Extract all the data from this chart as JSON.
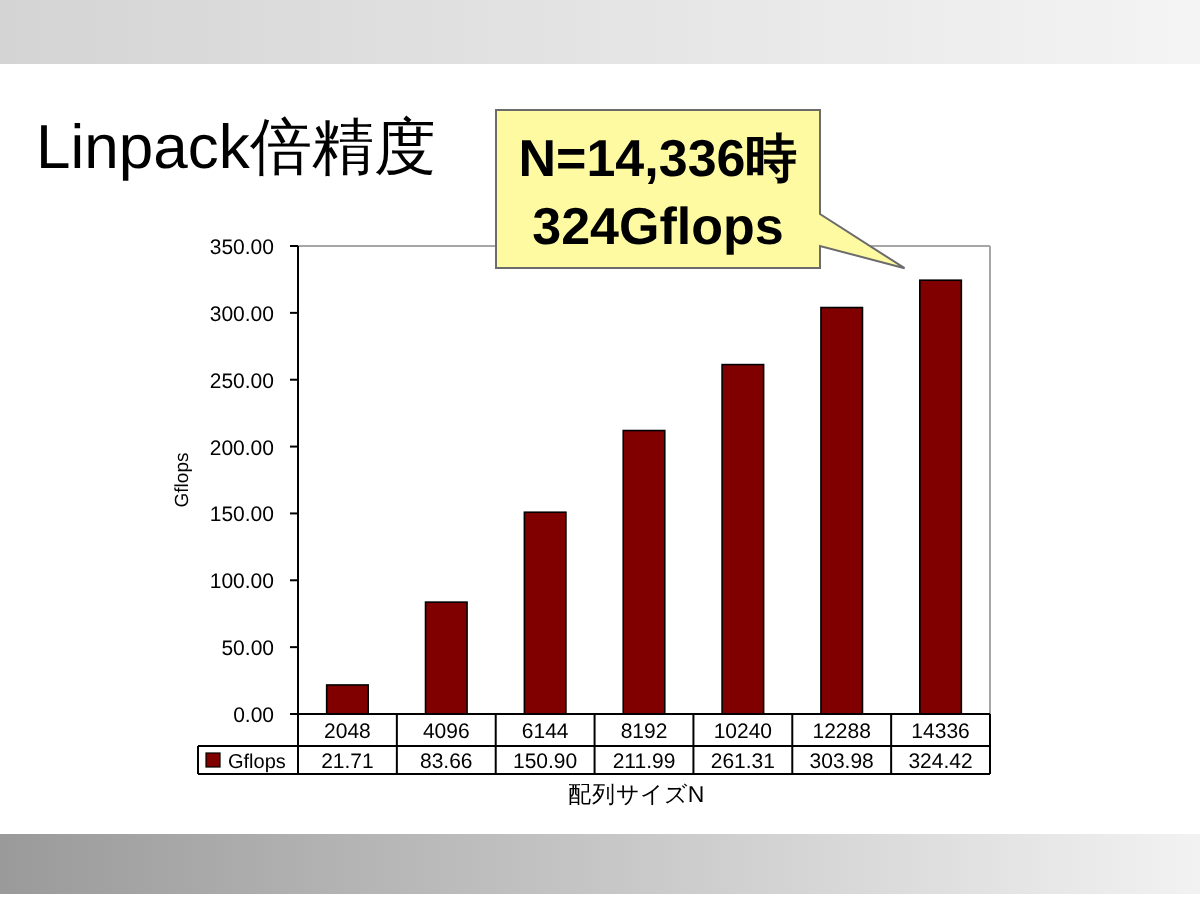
{
  "chart_data": {
    "type": "bar",
    "title": "Linpack倍精度",
    "xlabel": "配列サイズN",
    "ylabel": "Gflops",
    "categories": [
      "2048",
      "4096",
      "6144",
      "8192",
      "10240",
      "12288",
      "14336"
    ],
    "series": [
      {
        "name": "Gflops",
        "color": "#800000",
        "values": [
          21.71,
          83.66,
          150.9,
          211.99,
          261.31,
          303.98,
          324.42
        ],
        "value_labels": [
          "21.71",
          "83.66",
          "150.90",
          "211.99",
          "261.31",
          "303.98",
          "324.42"
        ]
      }
    ],
    "ylim": [
      0,
      350
    ],
    "yticks": [
      {
        "value": 0,
        "label": "0.00"
      },
      {
        "value": 50,
        "label": "50.00"
      },
      {
        "value": 100,
        "label": "100.00"
      },
      {
        "value": 150,
        "label": "150.00"
      },
      {
        "value": 200,
        "label": "200.00"
      },
      {
        "value": 250,
        "label": "250.00"
      },
      {
        "value": 300,
        "label": "300.00"
      },
      {
        "value": 350,
        "label": "350.00"
      }
    ],
    "annotations": [
      {
        "text": "N=14,336時\n324Gflops",
        "x": "14336",
        "y": 324.42
      }
    ],
    "legend": "bottom",
    "grid": false
  }
}
